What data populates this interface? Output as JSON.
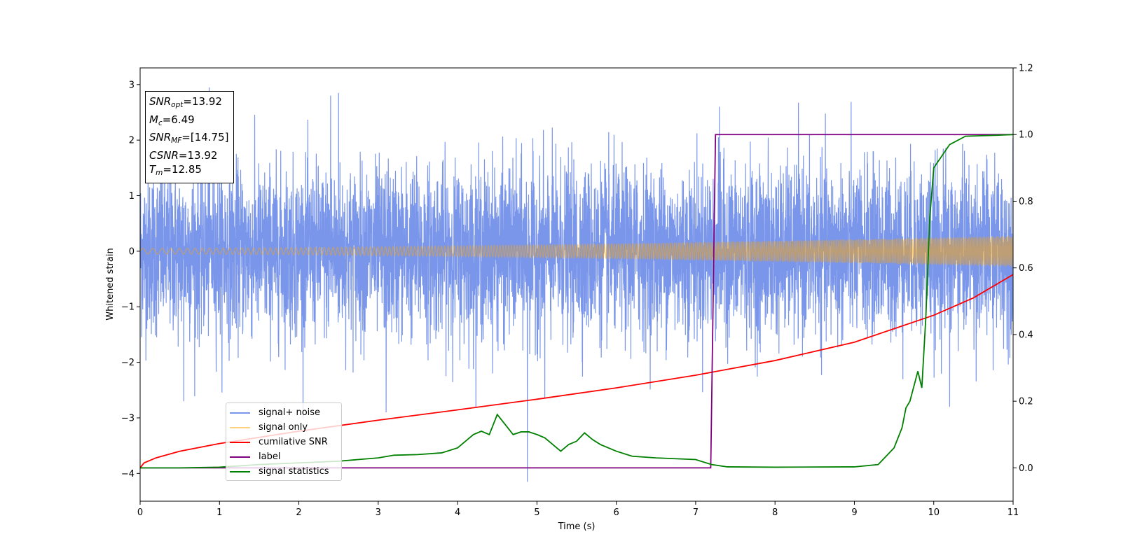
{
  "chart_data": {
    "type": "line",
    "xlabel": "Time (s)",
    "ylabel": "Whitened strain",
    "xlim": [
      0,
      11
    ],
    "ylim": [
      -4.5,
      3.3
    ],
    "y2lim": [
      -0.1,
      1.2
    ],
    "x_ticks": [
      "0",
      "1",
      "2",
      "3",
      "4",
      "5",
      "6",
      "7",
      "8",
      "9",
      "10",
      "11"
    ],
    "y_ticks": [
      "−4",
      "−3",
      "−2",
      "−1",
      "0",
      "1",
      "2",
      "3"
    ],
    "y2_ticks": [
      "0.0",
      "0.2",
      "0.4",
      "0.6",
      "0.8",
      "1.0",
      "1.2"
    ],
    "grid": false,
    "legend_position": "lower-left",
    "annotations": [
      {
        "var": "SNR",
        "sub": "opt",
        "value": "=13.92"
      },
      {
        "var": "M",
        "sub": "c",
        "value": "=6.49"
      },
      {
        "var": "SNR",
        "sub": "MF",
        "value": "=[14.75]"
      },
      {
        "var": "CSNR",
        "sub": "",
        "value": "=13.92"
      },
      {
        "var": "T",
        "sub": "m",
        "value": "=12.85"
      }
    ],
    "series": [
      {
        "name": "signal+ noise",
        "color": "#4169e1",
        "axis": "left",
        "kind": "noise",
        "approx_std": 0.75,
        "notable_spikes": [
          {
            "x": 0.87,
            "y": 2.95
          },
          {
            "x": 2.5,
            "y": 2.85
          },
          {
            "x": 2.4,
            "y": 2.8
          },
          {
            "x": 4.88,
            "y": -4.15
          },
          {
            "x": 3.1,
            "y": -2.9
          },
          {
            "x": 0.55,
            "y": -2.7
          },
          {
            "x": 5.1,
            "y": -2.65
          },
          {
            "x": 7.3,
            "y": 2.6
          },
          {
            "x": 10.2,
            "y": -2.8
          }
        ]
      },
      {
        "name": "signal only",
        "color": "#ffa500",
        "axis": "left",
        "kind": "chirp",
        "amplitude_start": 0.05,
        "amplitude_end": 0.28
      },
      {
        "name": "cumilative SNR",
        "color": "#ff0000",
        "axis": "right",
        "x": [
          0,
          0.05,
          0.2,
          0.5,
          1,
          2,
          3,
          4,
          5,
          6,
          7,
          8,
          9,
          10,
          10.5,
          11
        ],
        "values": [
          0.0,
          0.015,
          0.03,
          0.05,
          0.073,
          0.11,
          0.143,
          0.174,
          0.206,
          0.24,
          0.278,
          0.322,
          0.377,
          0.458,
          0.51,
          0.58
        ]
      },
      {
        "name": "label",
        "color": "#800080",
        "axis": "right",
        "x": [
          0,
          7.19,
          7.25,
          11
        ],
        "values": [
          0,
          0,
          1,
          1
        ]
      },
      {
        "name": "signal statistics",
        "color": "#008000",
        "axis": "right",
        "x": [
          0,
          0.5,
          1,
          1.5,
          2,
          2.5,
          3,
          3.2,
          3.5,
          3.8,
          4,
          4.1,
          4.2,
          4.3,
          4.4,
          4.5,
          4.6,
          4.7,
          4.8,
          4.9,
          5,
          5.1,
          5.2,
          5.3,
          5.4,
          5.5,
          5.6,
          5.7,
          5.8,
          6,
          6.2,
          6.5,
          7,
          7.2,
          7.4,
          8,
          9,
          9.3,
          9.5,
          9.6,
          9.65,
          9.7,
          9.8,
          9.85,
          9.9,
          9.95,
          10,
          10.2,
          10.4,
          10.8,
          11
        ],
        "values": [
          0.0,
          0.0,
          0.002,
          0.01,
          0.015,
          0.02,
          0.03,
          0.038,
          0.04,
          0.045,
          0.06,
          0.08,
          0.1,
          0.11,
          0.1,
          0.16,
          0.13,
          0.1,
          0.108,
          0.108,
          0.1,
          0.09,
          0.07,
          0.05,
          0.07,
          0.08,
          0.105,
          0.085,
          0.07,
          0.05,
          0.035,
          0.03,
          0.025,
          0.01,
          0.003,
          0.002,
          0.003,
          0.01,
          0.06,
          0.12,
          0.18,
          0.2,
          0.29,
          0.24,
          0.45,
          0.75,
          0.9,
          0.97,
          0.995,
          0.998,
          1.0
        ]
      }
    ]
  }
}
